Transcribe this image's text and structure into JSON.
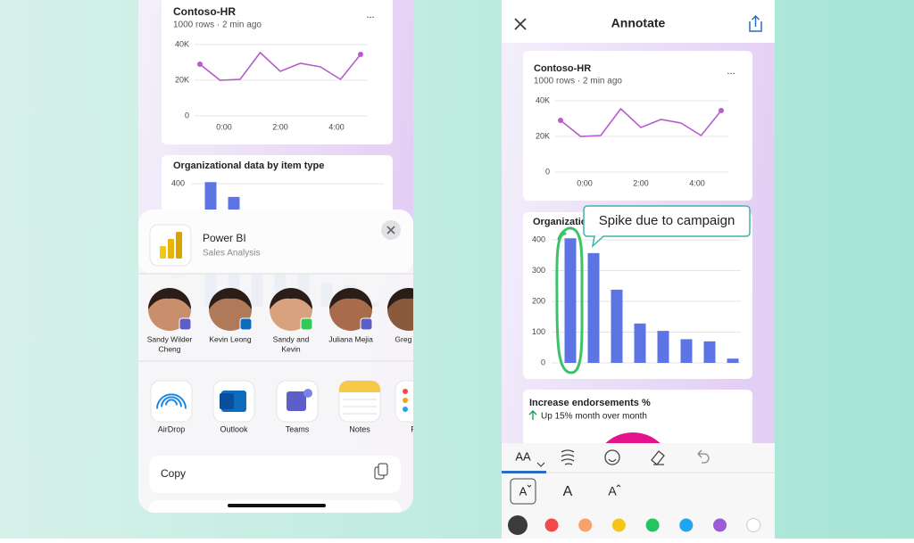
{
  "charts": {
    "line": {
      "type": "line",
      "title": "Contoso-HR",
      "subtitle": "1000 rows · 2 min ago",
      "menu": "...",
      "color": "#b65ccc",
      "values": [
        29000,
        20000,
        20500,
        35500,
        25000,
        29500,
        27500,
        20500,
        34500
      ],
      "ylim": [
        0,
        40000
      ],
      "yticks": [
        0,
        {
          "value": 20000,
          "label": "20K"
        },
        {
          "value": 40000,
          "label": "40K"
        }
      ],
      "xlabels": [
        "0:00",
        "2:00",
        "4:00"
      ],
      "grid": true
    },
    "bar": {
      "type": "bar",
      "title": "Organizational data by item type",
      "color": "#5d74e4",
      "values": [
        405,
        357,
        238,
        128,
        104,
        77,
        70,
        14
      ],
      "ylim": [
        0,
        400
      ],
      "yticks": [
        0,
        100,
        200,
        300,
        400
      ],
      "grid": true
    }
  },
  "share": {
    "app": "Power BI",
    "subtitle": "Sales Analysis",
    "contacts": [
      [
        "Sandy Wilder",
        "Cheng"
      ],
      [
        "Kevin Leong"
      ],
      [
        "Sandy and",
        "Kevin"
      ],
      [
        "Juliana Mejia"
      ],
      [
        "Greg Ap"
      ]
    ],
    "apps": [
      "AirDrop",
      "Outlook",
      "Teams",
      "Notes",
      "Re"
    ],
    "action": "Copy"
  },
  "annotate": {
    "title": "Annotate",
    "callout": "Spike due to campaign",
    "kpi": {
      "title": "Increase endorsements %",
      "subtitle": "Up 15% month over month"
    },
    "tool": "AA",
    "sizes": [
      "A",
      "A",
      "A"
    ],
    "palette": [
      "#3b3b3b",
      "#f2494b",
      "#f7a26a",
      "#f5c518",
      "#22c55e",
      "#1ea7f0",
      "#9b5cd6",
      "#ffffff"
    ]
  }
}
